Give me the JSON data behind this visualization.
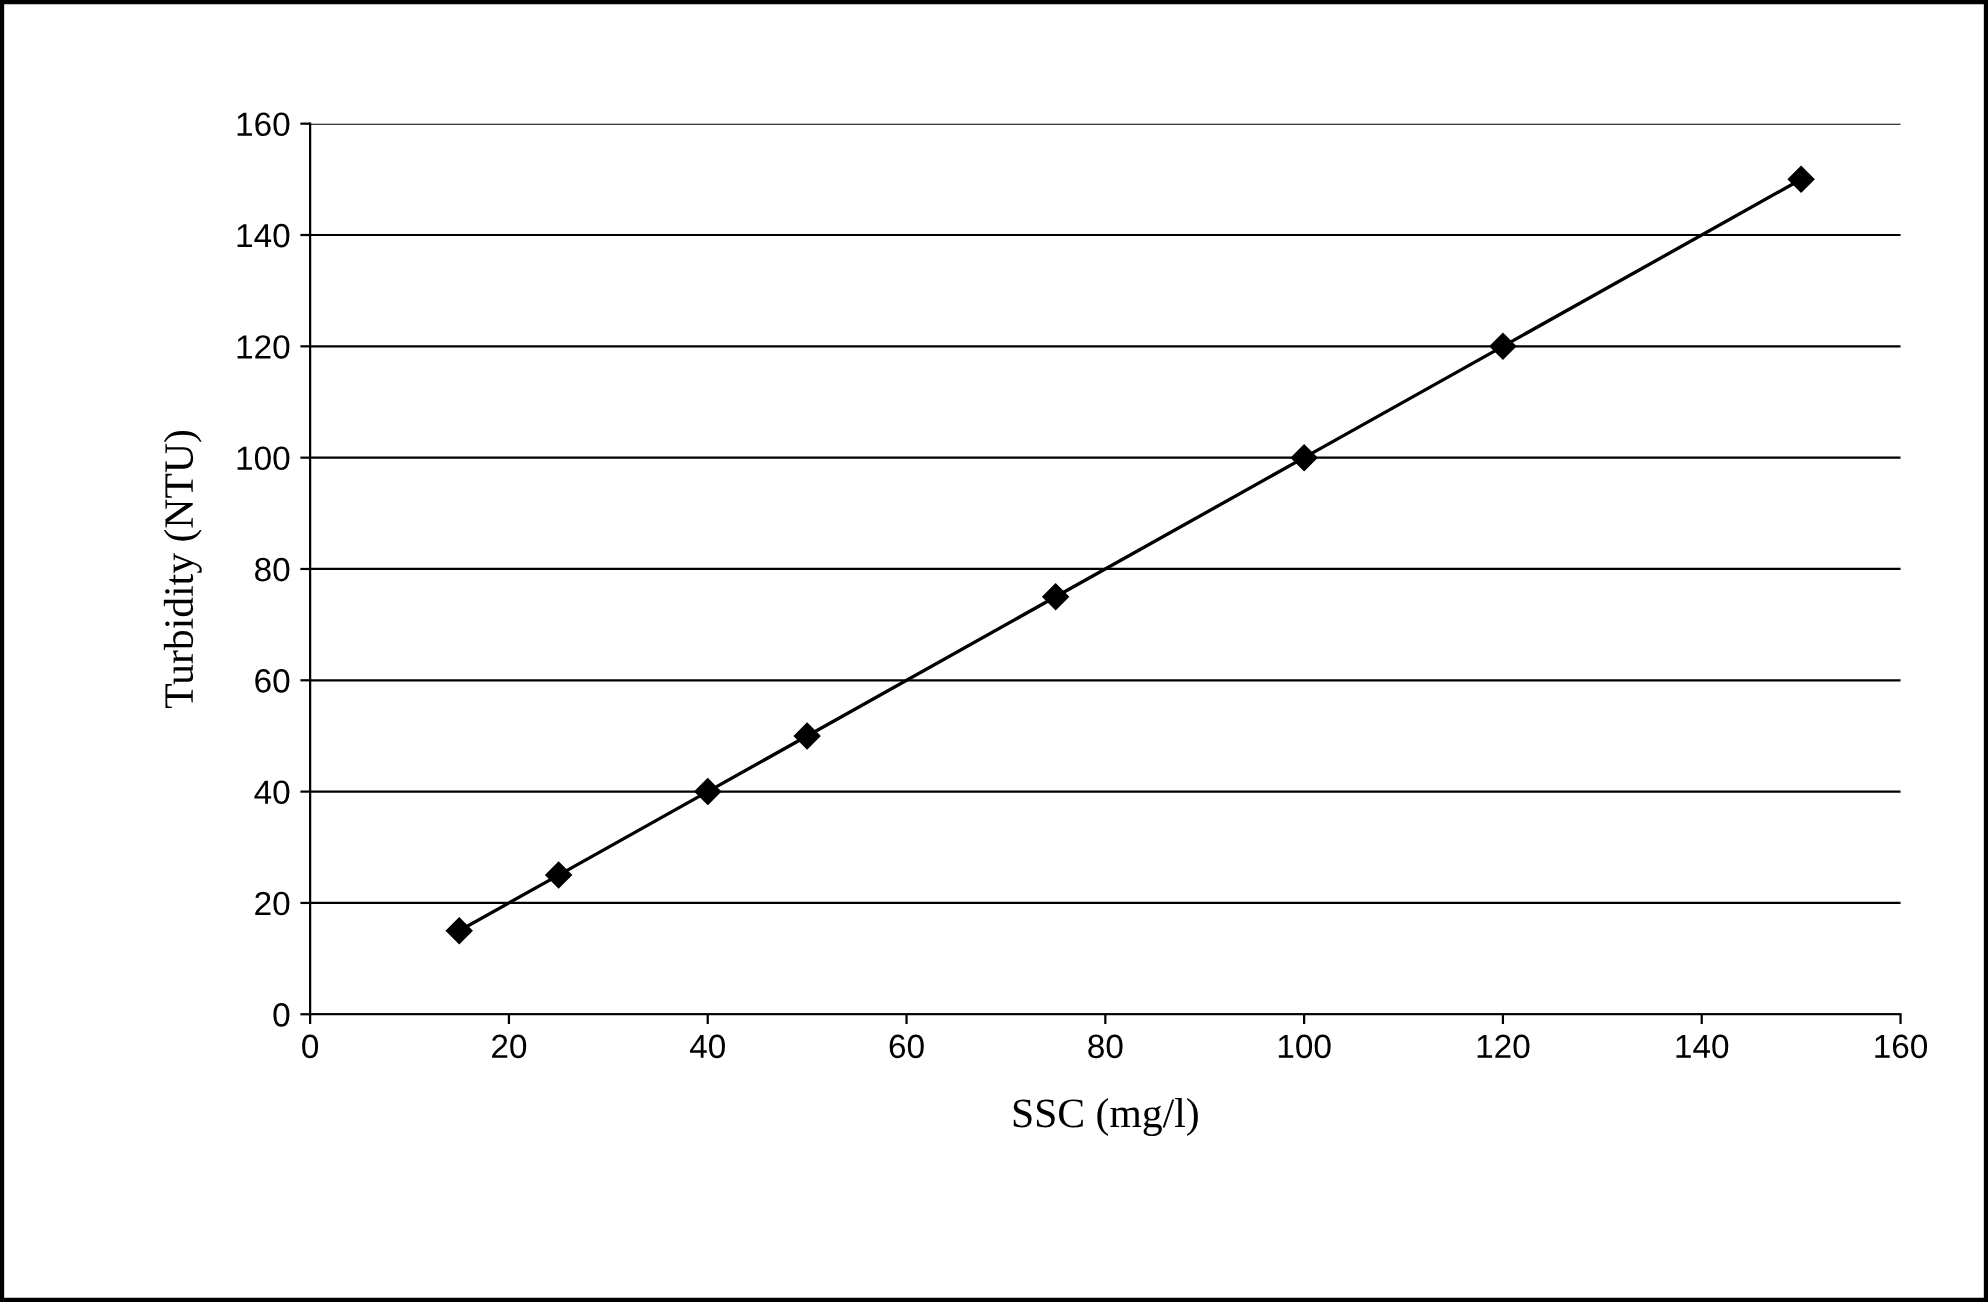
{
  "chart_data": {
    "type": "line",
    "xlabel": "SSC (mg/l)",
    "ylabel": "Turbidity (NTU)",
    "x": [
      15,
      25,
      40,
      50,
      75,
      100,
      120,
      150
    ],
    "series": [
      {
        "color": "#000000",
        "values": [
          15,
          25,
          40,
          50,
          75,
          100,
          120,
          150
        ]
      }
    ],
    "xlim": [
      0,
      160
    ],
    "xticks": [
      0,
      20,
      40,
      60,
      80,
      100,
      120,
      140,
      160
    ],
    "ylim": [
      0,
      160
    ],
    "yticks": [
      0,
      20,
      40,
      60,
      80,
      100,
      120,
      140,
      160
    ],
    "grid": "y",
    "legend": false,
    "marker": "diamond",
    "line_style": "solid"
  }
}
